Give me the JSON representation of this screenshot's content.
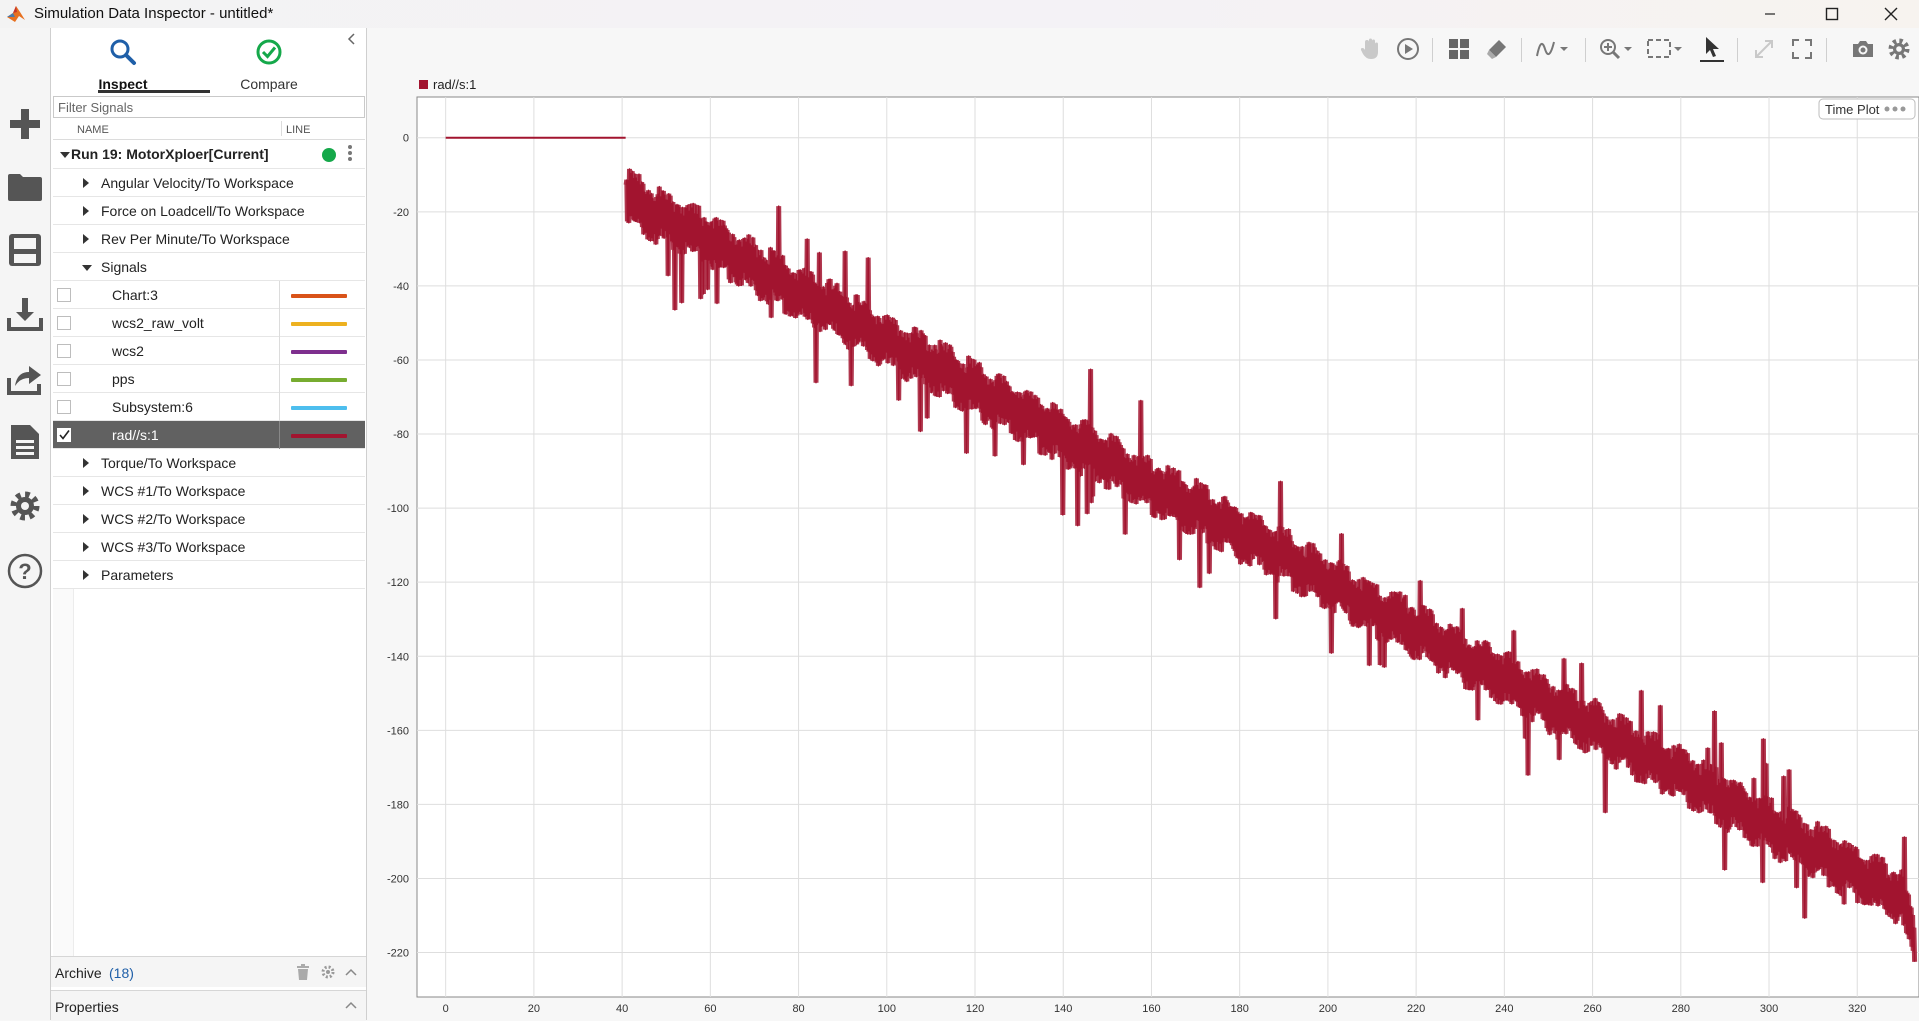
{
  "window": {
    "title": "Simulation Data Inspector - untitled*"
  },
  "tabs": {
    "inspect": "Inspect",
    "compare": "Compare"
  },
  "filter": {
    "placeholder": "Filter Signals"
  },
  "columns": {
    "name": "NAME",
    "line": "LINE"
  },
  "run": {
    "label": "Run 19: MotorXploer[Current]",
    "status_color": "#15a84a"
  },
  "groups_top": [
    "Angular Velocity/To Workspace",
    "Force on Loadcell/To Workspace",
    "Rev Per Minute/To Workspace"
  ],
  "signals_group": "Signals",
  "signals": [
    {
      "name": "Chart:3",
      "color": "#d95319",
      "checked": false
    },
    {
      "name": "wcs2_raw_volt",
      "color": "#edb120",
      "checked": false
    },
    {
      "name": "wcs2",
      "color": "#7e2f8e",
      "checked": false
    },
    {
      "name": "pps",
      "color": "#77ac30",
      "checked": false
    },
    {
      "name": "Subsystem:6",
      "color": "#4dbeee",
      "checked": false
    },
    {
      "name": "rad//s:1",
      "color": "#a2142f",
      "checked": true
    }
  ],
  "groups_bottom": [
    "Torque/To Workspace",
    "WCS #1/To Workspace",
    "WCS #2/To Workspace",
    "WCS #3/To Workspace",
    "Parameters"
  ],
  "archive": {
    "label": "Archive",
    "count": "(18)"
  },
  "properties": {
    "label": "Properties"
  },
  "plot": {
    "badge": "Time Plot"
  },
  "icons": {
    "rail": [
      "plus-icon",
      "folder-icon",
      "save-icon",
      "download-icon",
      "share-icon",
      "report-icon",
      "gear-icon",
      "help-icon"
    ],
    "toolbar": [
      "pan-hand-icon",
      "replay-icon",
      "layout-grid-icon",
      "eraser-icon",
      "signal-wave-icon",
      "zoom-icon",
      "fit-view-icon",
      "cursor-icon",
      "expand-icon",
      "fullscreen-icon",
      "camera-icon",
      "settings-icon"
    ]
  },
  "chart_data": {
    "type": "line",
    "series": [
      {
        "name": "rad//s:1",
        "color": "#a2142f",
        "x": [
          0,
          40.8,
          41,
          45,
          50,
          55,
          60,
          70,
          80,
          90,
          100,
          110,
          120,
          130,
          140,
          150,
          160,
          170,
          180,
          190,
          200,
          210,
          220,
          230,
          240,
          250,
          260,
          270,
          280,
          290,
          300,
          310,
          320,
          330,
          333
        ],
        "y": [
          0,
          0,
          -15,
          -19,
          -22,
          -25,
          -28,
          -35,
          -42,
          -48,
          -55,
          -61,
          -68,
          -74,
          -81,
          -87,
          -94,
          -100,
          -107,
          -113,
          -120,
          -127,
          -133,
          -140,
          -146,
          -153,
          -159,
          -166,
          -172,
          -179,
          -186,
          -192,
          -199,
          -205,
          -217
        ]
      }
    ],
    "xlim": [
      -6.5,
      334
    ],
    "ylim": [
      -232,
      11
    ],
    "xticks": [
      0,
      20,
      40,
      60,
      80,
      100,
      120,
      140,
      160,
      180,
      200,
      220,
      240,
      260,
      280,
      300,
      320
    ],
    "yticks": [
      0,
      -20,
      -40,
      -60,
      -80,
      -100,
      -120,
      -140,
      -160,
      -180,
      -200,
      -220
    ],
    "grid": true,
    "legend": "top-left",
    "band": "noisy staircase descending from x≈41 to 333"
  }
}
